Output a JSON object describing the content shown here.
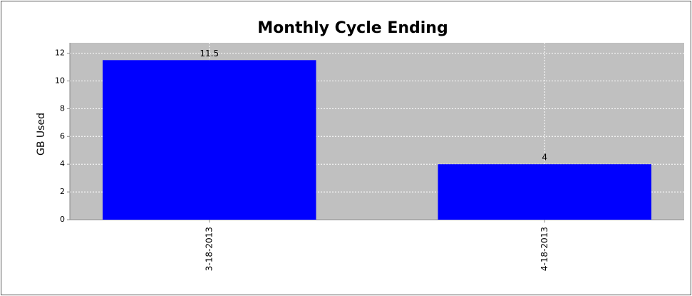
{
  "chart_data": {
    "type": "bar",
    "title": "Monthly Cycle Ending",
    "y_label": "GB Used",
    "categories": [
      "3-18-2013",
      "4-18-2013"
    ],
    "values": [
      11.5,
      4
    ],
    "color": "#0000ff",
    "ylim": [
      0,
      12.75
    ],
    "yticks": [
      0,
      2,
      4,
      6,
      8,
      10,
      12
    ],
    "grid": true
  }
}
